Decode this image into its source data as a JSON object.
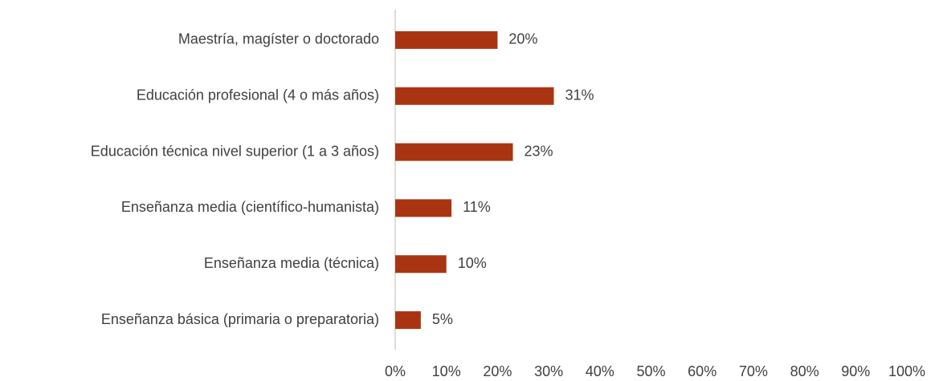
{
  "chart_data": {
    "type": "bar",
    "orientation": "horizontal",
    "categories": [
      "Maestría, magíster o doctorado",
      "Educación profesional (4 o más años)",
      "Educación técnica nivel superior (1 a 3 años)",
      "Enseñanza media (científico-humanista)",
      "Enseñanza media (técnica)",
      "Enseñanza básica (primaria o preparatoria)"
    ],
    "values": [
      20,
      31,
      23,
      11,
      10,
      5
    ],
    "value_labels": [
      "20%",
      "31%",
      "23%",
      "11%",
      "10%",
      "5%"
    ],
    "color": "#a93412",
    "xlim": [
      0,
      100
    ],
    "xticks": [
      {
        "value": 0,
        "label": "0%"
      },
      {
        "value": 10,
        "label": "10%"
      },
      {
        "value": 20,
        "label": "20%"
      },
      {
        "value": 30,
        "label": "30%"
      },
      {
        "value": 40,
        "label": "40%"
      },
      {
        "value": 50,
        "label": "50%"
      },
      {
        "value": 60,
        "label": "60%"
      },
      {
        "value": 70,
        "label": "70%"
      },
      {
        "value": 80,
        "label": "80%"
      },
      {
        "value": 90,
        "label": "90%"
      },
      {
        "value": 100,
        "label": "100%"
      }
    ],
    "grid": false
  }
}
